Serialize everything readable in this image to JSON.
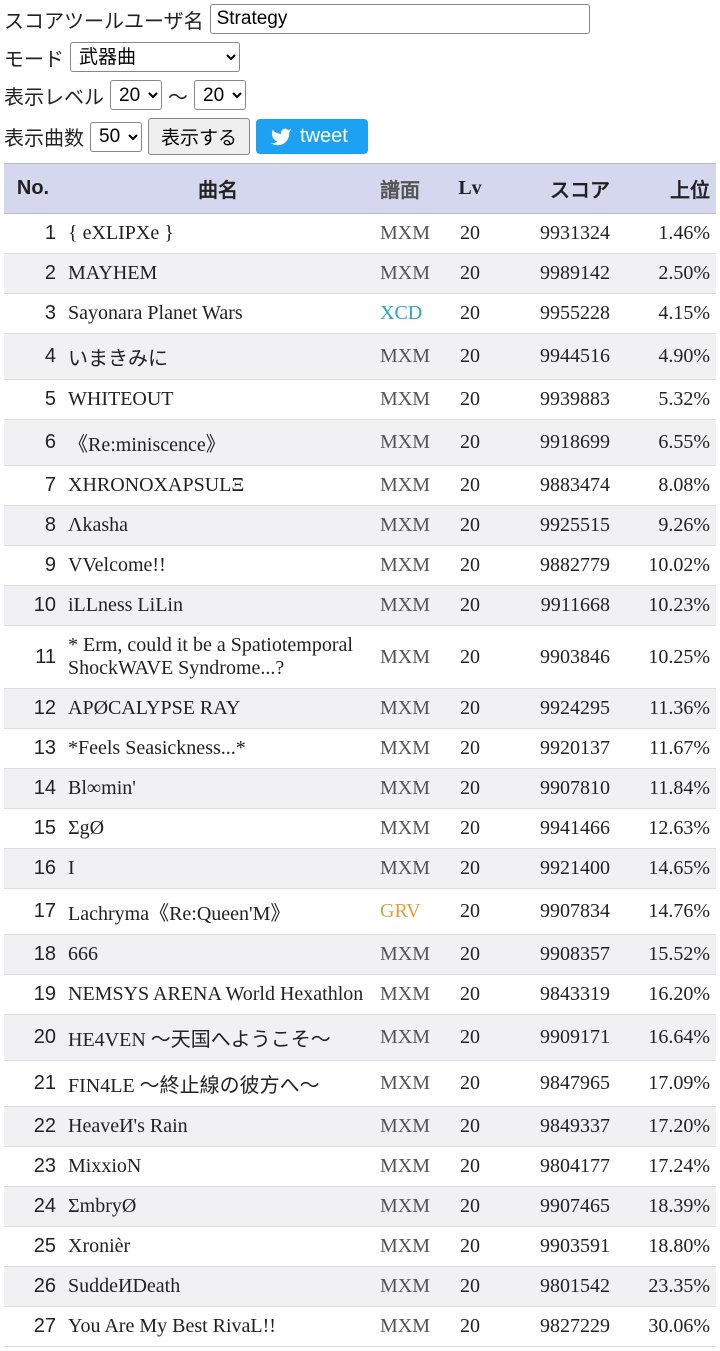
{
  "form": {
    "username_label": "スコアツールユーザ名",
    "username_value": "Strategy",
    "mode_label": "モード",
    "mode_value": "武器曲",
    "level_label": "表示レベル",
    "level_min": "20",
    "level_sep": "～",
    "level_max": "20",
    "count_label": "表示曲数",
    "count_value": "50",
    "show_button": "表示する",
    "tweet_button": "tweet"
  },
  "table": {
    "headers": {
      "no": "No.",
      "title": "曲名",
      "diff": "譜面",
      "lv": "Lv",
      "score": "スコア",
      "rank": "上位"
    },
    "diff_colors": {
      "MXM": "#555555",
      "XCD": "#2aa3d6",
      "GRV": "#d9a23a"
    },
    "rows": [
      {
        "no": 1,
        "title": "{ eXLIPXe }",
        "diff": "MXM",
        "lv": 20,
        "score": 9931324,
        "rank": "1.46%"
      },
      {
        "no": 2,
        "title": "MAYHEM",
        "diff": "MXM",
        "lv": 20,
        "score": 9989142,
        "rank": "2.50%"
      },
      {
        "no": 3,
        "title": "Sayonara Planet Wars",
        "diff": "XCD",
        "lv": 20,
        "score": 9955228,
        "rank": "4.15%"
      },
      {
        "no": 4,
        "title": "いまきみに",
        "diff": "MXM",
        "lv": 20,
        "score": 9944516,
        "rank": "4.90%"
      },
      {
        "no": 5,
        "title": "WHITEOUT",
        "diff": "MXM",
        "lv": 20,
        "score": 9939883,
        "rank": "5.32%"
      },
      {
        "no": 6,
        "title": "《Re:miniscence》",
        "diff": "MXM",
        "lv": 20,
        "score": 9918699,
        "rank": "6.55%"
      },
      {
        "no": 7,
        "title": "XHRONOXAPSULΞ",
        "diff": "MXM",
        "lv": 20,
        "score": 9883474,
        "rank": "8.08%"
      },
      {
        "no": 8,
        "title": "Λkasha",
        "diff": "MXM",
        "lv": 20,
        "score": 9925515,
        "rank": "9.26%"
      },
      {
        "no": 9,
        "title": "VVelcome!!",
        "diff": "MXM",
        "lv": 20,
        "score": 9882779,
        "rank": "10.02%"
      },
      {
        "no": 10,
        "title": "iLLness LiLin",
        "diff": "MXM",
        "lv": 20,
        "score": 9911668,
        "rank": "10.23%"
      },
      {
        "no": 11,
        "title": "* Erm, could it be a Spatiotemporal ShockWAVE Syndrome...?",
        "diff": "MXM",
        "lv": 20,
        "score": 9903846,
        "rank": "10.25%"
      },
      {
        "no": 12,
        "title": "APØCALYPSE RAY",
        "diff": "MXM",
        "lv": 20,
        "score": 9924295,
        "rank": "11.36%"
      },
      {
        "no": 13,
        "title": "*Feels Seasickness...*",
        "diff": "MXM",
        "lv": 20,
        "score": 9920137,
        "rank": "11.67%"
      },
      {
        "no": 14,
        "title": "Bl∞min'",
        "diff": "MXM",
        "lv": 20,
        "score": 9907810,
        "rank": "11.84%"
      },
      {
        "no": 15,
        "title": "ΣgØ",
        "diff": "MXM",
        "lv": 20,
        "score": 9941466,
        "rank": "12.63%"
      },
      {
        "no": 16,
        "title": "I",
        "diff": "MXM",
        "lv": 20,
        "score": 9921400,
        "rank": "14.65%"
      },
      {
        "no": 17,
        "title": "Lachryma《Re:Queen'M》",
        "diff": "GRV",
        "lv": 20,
        "score": 9907834,
        "rank": "14.76%"
      },
      {
        "no": 18,
        "title": "666",
        "diff": "MXM",
        "lv": 20,
        "score": 9908357,
        "rank": "15.52%"
      },
      {
        "no": 19,
        "title": "NEMSYS ARENA World Hexathlon",
        "diff": "MXM",
        "lv": 20,
        "score": 9843319,
        "rank": "16.20%"
      },
      {
        "no": 20,
        "title": "HE4VEN ～天国へようこそ～",
        "diff": "MXM",
        "lv": 20,
        "score": 9909171,
        "rank": "16.64%"
      },
      {
        "no": 21,
        "title": "FIN4LE ～終止線の彼方へ～",
        "diff": "MXM",
        "lv": 20,
        "score": 9847965,
        "rank": "17.09%"
      },
      {
        "no": 22,
        "title": "HeaveИ's Rain",
        "diff": "MXM",
        "lv": 20,
        "score": 9849337,
        "rank": "17.20%"
      },
      {
        "no": 23,
        "title": "MixxioN",
        "diff": "MXM",
        "lv": 20,
        "score": 9804177,
        "rank": "17.24%"
      },
      {
        "no": 24,
        "title": "ΣmbryØ",
        "diff": "MXM",
        "lv": 20,
        "score": 9907465,
        "rank": "18.39%"
      },
      {
        "no": 25,
        "title": "Xronièr",
        "diff": "MXM",
        "lv": 20,
        "score": 9903591,
        "rank": "18.80%"
      },
      {
        "no": 26,
        "title": "SuddeИDeath",
        "diff": "MXM",
        "lv": 20,
        "score": 9801542,
        "rank": "23.35%"
      },
      {
        "no": 27,
        "title": "You Are My Best RivaL!!",
        "diff": "MXM",
        "lv": 20,
        "score": 9827229,
        "rank": "30.06%"
      }
    ]
  }
}
